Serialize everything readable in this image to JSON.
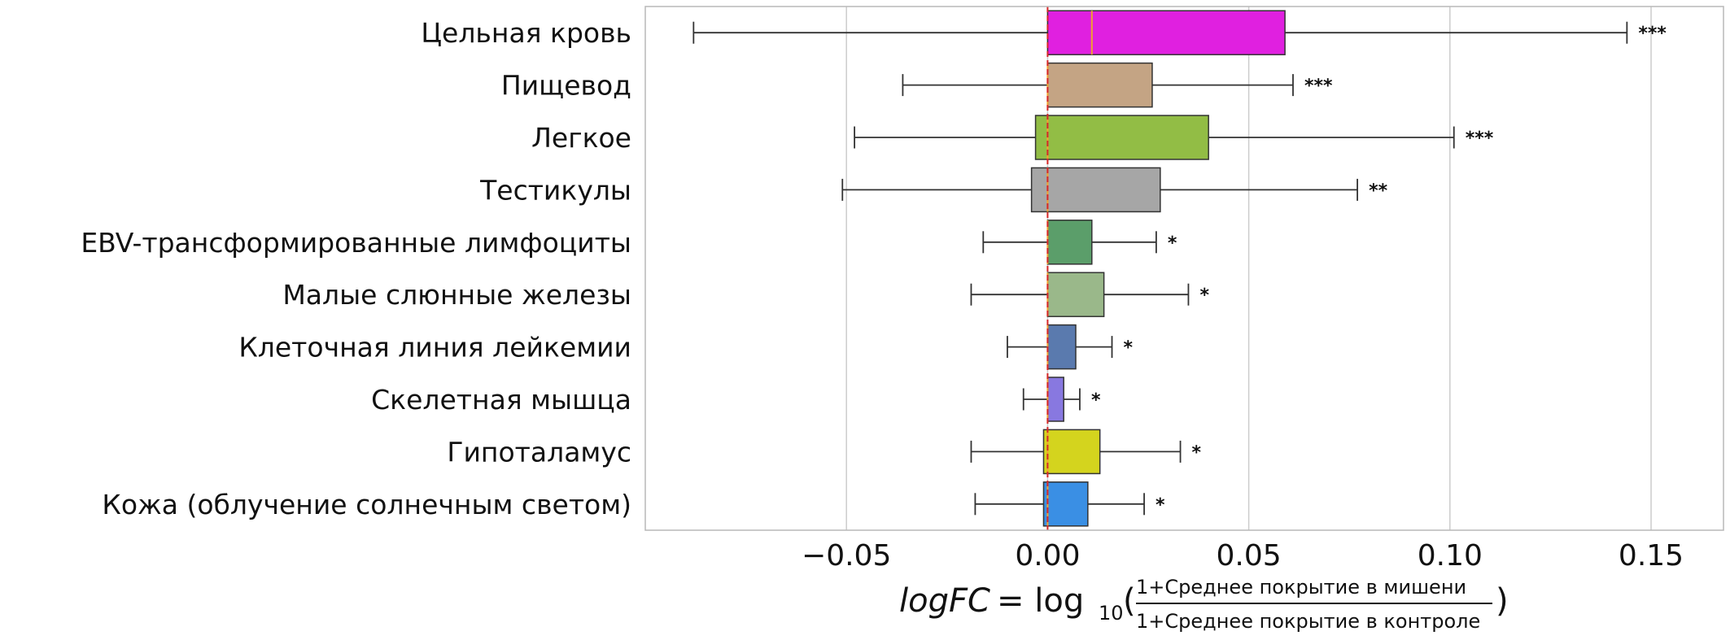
{
  "chart_data": {
    "type": "box",
    "orientation": "horizontal",
    "categories": [
      "Цельная кровь",
      "Пищевод",
      "Легкое",
      "Тестикулы",
      "EBV-трансформированные лимфоциты",
      "Малые слюнные железы",
      "Клеточная линия лейкемии",
      "Скелетная мышца",
      "Гипоталамус",
      "Кожа (облучение солнечным светом)"
    ],
    "boxes": [
      {
        "whisker_low": -0.088,
        "q1": 0.0,
        "median": 0.011,
        "q3": 0.059,
        "whisker_high": 0.144,
        "color": "#e020e0",
        "significance": "***"
      },
      {
        "whisker_low": -0.036,
        "q1": 0.0,
        "median": 0.0,
        "q3": 0.026,
        "whisker_high": 0.061,
        "color": "#c4a484",
        "significance": "***"
      },
      {
        "whisker_low": -0.048,
        "q1": -0.003,
        "median": 0.0,
        "q3": 0.04,
        "whisker_high": 0.101,
        "color": "#92bd45",
        "significance": "***"
      },
      {
        "whisker_low": -0.051,
        "q1": -0.004,
        "median": 0.0,
        "q3": 0.028,
        "whisker_high": 0.077,
        "color": "#a6a6a6",
        "significance": "**"
      },
      {
        "whisker_low": -0.016,
        "q1": 0.0,
        "median": 0.0,
        "q3": 0.011,
        "whisker_high": 0.027,
        "color": "#5b9e6a",
        "significance": "*"
      },
      {
        "whisker_low": -0.019,
        "q1": 0.0,
        "median": 0.0,
        "q3": 0.014,
        "whisker_high": 0.035,
        "color": "#9ab88a",
        "significance": "*"
      },
      {
        "whisker_low": -0.01,
        "q1": 0.0,
        "median": 0.0,
        "q3": 0.007,
        "whisker_high": 0.016,
        "color": "#5a7aae",
        "significance": "*"
      },
      {
        "whisker_low": -0.006,
        "q1": 0.0,
        "median": 0.0,
        "q3": 0.004,
        "whisker_high": 0.008,
        "color": "#8878e0",
        "significance": "*"
      },
      {
        "whisker_low": -0.019,
        "q1": -0.001,
        "median": 0.0,
        "q3": 0.013,
        "whisker_high": 0.033,
        "color": "#d4d41e",
        "significance": "*"
      },
      {
        "whisker_low": -0.018,
        "q1": -0.001,
        "median": 0.0,
        "q3": 0.01,
        "whisker_high": 0.024,
        "color": "#3a8fe4",
        "significance": "*"
      }
    ],
    "xlim": [
      -0.1,
      0.168
    ],
    "xticks": [
      -0.05,
      0.0,
      0.05,
      0.1,
      0.15
    ],
    "xtick_labels": [
      "−0.05",
      "0.00",
      "0.05",
      "0.10",
      "0.15"
    ],
    "xlabel": {
      "lhs": "logFC",
      "equals": " = log",
      "subscript": "10",
      "numerator": "1+Среднее покрытие в мишени",
      "denominator": "1+Среднее покрытие в контроле",
      "open_paren": "(",
      "close_paren": ")"
    },
    "reference_line": {
      "x": 0.0,
      "color": "#d62728",
      "style": "dashed"
    },
    "median_color": "#f0a030",
    "grid": "vertical",
    "grid_color": "#cccccc",
    "legend": "none"
  }
}
